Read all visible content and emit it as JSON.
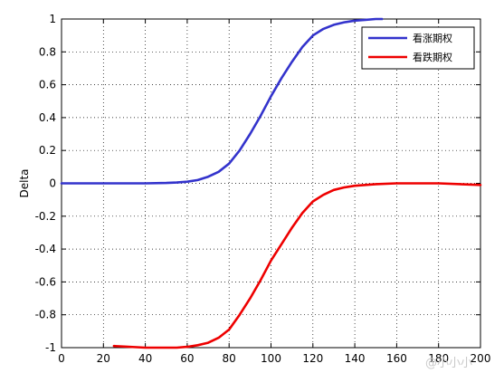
{
  "chart_data": {
    "type": "line",
    "ylabel": "Delta",
    "xlim": [
      0,
      200
    ],
    "ylim": [
      -1,
      1
    ],
    "xticks": [
      "0",
      "20",
      "40",
      "60",
      "80",
      "100",
      "120",
      "140",
      "160",
      "180",
      "200"
    ],
    "yticks": [
      "1",
      "0.8",
      "0.6",
      "0.4",
      "0.2",
      "0",
      "-0.2",
      "-0.4",
      "-0.6",
      "-0.8",
      "-1"
    ],
    "grid": true,
    "legend_position": "top-right",
    "series": [
      {
        "name": "看涨期权",
        "color": "#3333cc",
        "x": [
          0,
          20,
          40,
          50,
          55,
          60,
          65,
          70,
          75,
          80,
          85,
          90,
          95,
          100,
          105,
          110,
          115,
          120,
          125,
          130,
          135,
          140,
          145,
          150,
          153
        ],
        "y": [
          0,
          0,
          0,
          0.002,
          0.005,
          0.01,
          0.02,
          0.04,
          0.07,
          0.12,
          0.2,
          0.3,
          0.41,
          0.53,
          0.64,
          0.74,
          0.83,
          0.9,
          0.94,
          0.965,
          0.98,
          0.99,
          0.995,
          1.0,
          1.0
        ]
      },
      {
        "name": "看跌期权",
        "color": "#ee0000",
        "x": [
          25,
          40,
          55,
          60,
          65,
          70,
          75,
          80,
          85,
          90,
          95,
          100,
          105,
          110,
          115,
          120,
          125,
          130,
          135,
          140,
          150,
          160,
          180,
          200
        ],
        "y": [
          -0.99,
          -1.0,
          -1.0,
          -0.995,
          -0.985,
          -0.97,
          -0.94,
          -0.89,
          -0.8,
          -0.7,
          -0.59,
          -0.47,
          -0.37,
          -0.27,
          -0.18,
          -0.11,
          -0.07,
          -0.04,
          -0.025,
          -0.015,
          -0.005,
          0,
          0,
          -0.01
        ]
      }
    ]
  },
  "watermark": {
    "text": "@小小小"
  }
}
